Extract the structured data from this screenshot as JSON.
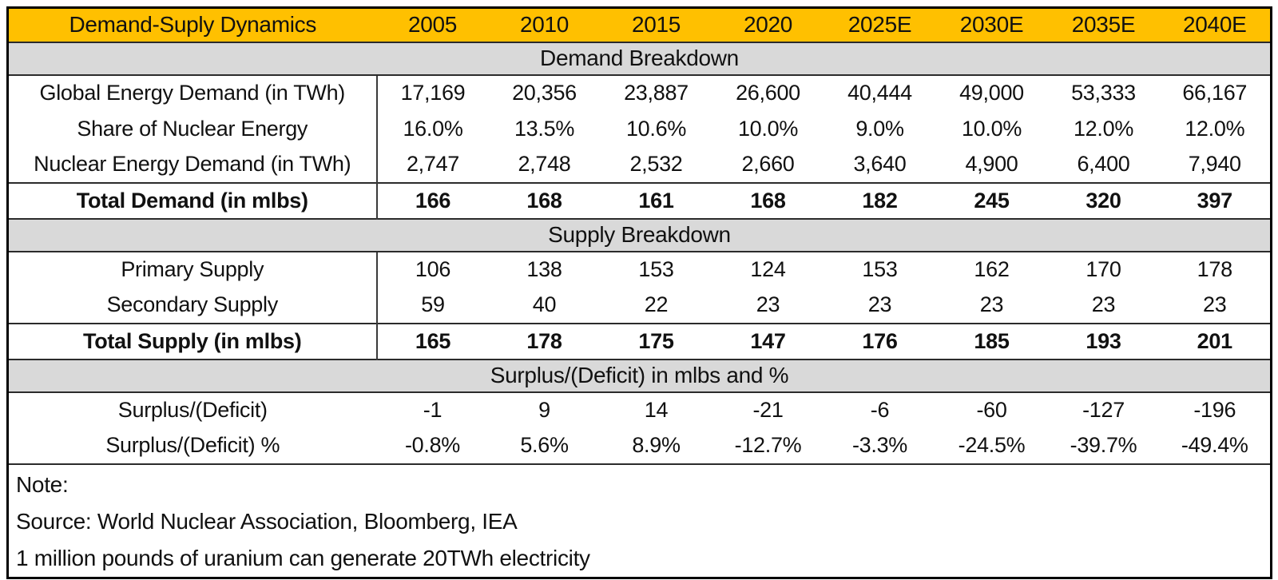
{
  "colors": {
    "header_bg": "#FFC000",
    "section_bg": "#D9D9D9",
    "border_outer": "#000000",
    "border_inner": "#2B2B2B",
    "text": "#111111"
  },
  "chart_data": {
    "type": "table",
    "title": "Demand-Suply Dynamics",
    "columns": [
      "2005",
      "2010",
      "2015",
      "2020",
      "2025E",
      "2030E",
      "2035E",
      "2040E"
    ],
    "sections": [
      {
        "title": "Demand Breakdown",
        "rows": [
          {
            "label": "Global Energy Demand (in TWh)",
            "bold": false,
            "values": [
              "17,169",
              "20,356",
              "23,887",
              "26,600",
              "40,444",
              "49,000",
              "53,333",
              "66,167"
            ]
          },
          {
            "label": "Share of Nuclear Energy",
            "bold": false,
            "values": [
              "16.0%",
              "13.5%",
              "10.6%",
              "10.0%",
              "9.0%",
              "10.0%",
              "12.0%",
              "12.0%"
            ]
          },
          {
            "label": "Nuclear Energy Demand (in TWh)",
            "bold": false,
            "values": [
              "2,747",
              "2,748",
              "2,532",
              "2,660",
              "3,640",
              "4,900",
              "6,400",
              "7,940"
            ]
          },
          {
            "label": "Total Demand (in mlbs)",
            "bold": true,
            "values": [
              "166",
              "168",
              "161",
              "168",
              "182",
              "245",
              "320",
              "397"
            ]
          }
        ]
      },
      {
        "title": "Supply Breakdown",
        "rows": [
          {
            "label": "Primary Supply",
            "bold": false,
            "values": [
              "106",
              "138",
              "153",
              "124",
              "153",
              "162",
              "170",
              "178"
            ]
          },
          {
            "label": "Secondary Supply",
            "bold": false,
            "values": [
              "59",
              "40",
              "22",
              "23",
              "23",
              "23",
              "23",
              "23"
            ]
          },
          {
            "label": "Total Supply (in mlbs)",
            "bold": true,
            "values": [
              "165",
              "178",
              "175",
              "147",
              "176",
              "185",
              "193",
              "201"
            ]
          }
        ]
      },
      {
        "title": "Surplus/(Deficit) in mlbs and %",
        "rows": [
          {
            "label": "Surplus/(Deficit)",
            "bold": false,
            "values": [
              "-1",
              "9",
              "14",
              "-21",
              "-6",
              "-60",
              "-127",
              "-196"
            ]
          },
          {
            "label": "Surplus/(Deficit) %",
            "bold": false,
            "values": [
              "-0.8%",
              "5.6%",
              "8.9%",
              "-12.7%",
              "-3.3%",
              "-24.5%",
              "-39.7%",
              "-49.4%"
            ]
          }
        ]
      }
    ],
    "notes": [
      "Note:",
      "Source: World Nuclear Association, Bloomberg, IEA",
      "1 million pounds of uranium can generate 20TWh electricity"
    ]
  }
}
